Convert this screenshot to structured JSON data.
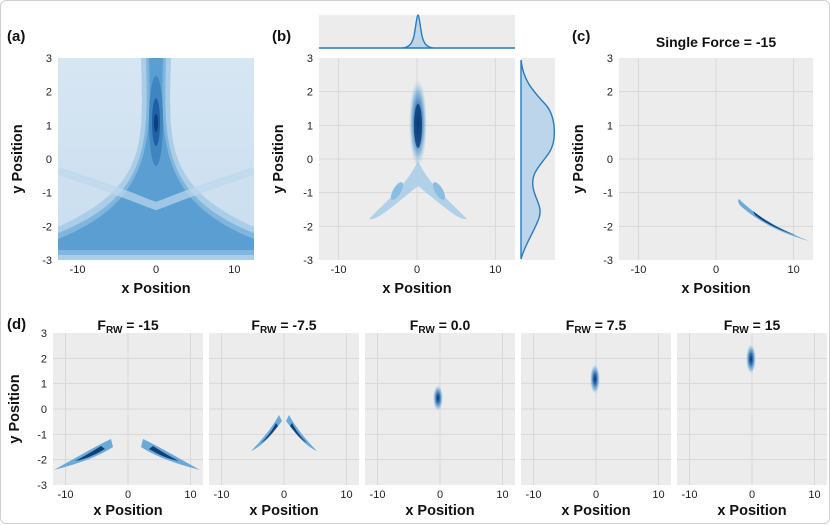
{
  "colors": {
    "accent": "#2b7bba",
    "dark": "#08306b",
    "panel_bg": "#ececec",
    "grid": "#d8d8d8"
  },
  "panel_labels": {
    "a": "(a)",
    "b": "(b)",
    "c": "(c)",
    "d": "(d)"
  },
  "axis_labels": {
    "x": "x Position",
    "y": "y Position"
  },
  "chart_data": [
    {
      "id": "a",
      "type": "heatmap",
      "xlabel": "x Position",
      "ylabel": "y Position",
      "xlim": [
        -12.5,
        12.5
      ],
      "ylim": [
        -3,
        3
      ],
      "xticks": [
        -10,
        0,
        10
      ],
      "yticks": [
        3,
        2,
        1,
        0,
        -1,
        -2,
        -3
      ],
      "description_values": {
        "peak": [
          0,
          1
        ],
        "branches": "two branches toward (-12,-2.4) and (12,-2.4)"
      }
    },
    {
      "id": "b",
      "type": "heatmap",
      "xlabel": "x Position",
      "ylabel": "y Position",
      "xlim": [
        -12.5,
        12.5
      ],
      "ylim": [
        -3,
        3
      ],
      "xticks": [
        -10,
        0,
        10
      ],
      "yticks": [
        3,
        2,
        1,
        0,
        -1,
        -2,
        -3
      ],
      "peak": [
        0,
        1
      ],
      "marginals": [
        "top: x density sharply peaked at 0",
        "right: y density with modes near 1 and -2"
      ]
    },
    {
      "id": "c",
      "type": "heatmap",
      "title": "Single Force = -15",
      "xlabel": "x Position",
      "ylabel": "y Position",
      "xlim": [
        -12.5,
        12.5
      ],
      "ylim": [
        -3,
        3
      ],
      "xticks": [
        -10,
        0,
        10
      ],
      "yticks": [
        3,
        2,
        1,
        0,
        -1,
        -2,
        -3
      ],
      "ridge": [
        [
          3.5,
          -1.3
        ],
        [
          6,
          -1.9
        ],
        [
          12,
          -2.45
        ]
      ]
    },
    {
      "id": "d1",
      "type": "heatmap",
      "title_main": "F",
      "title_sub": "RW",
      "title_value": " = -15",
      "xlabel": "x Position",
      "ylabel": "y Position",
      "xlim": [
        -12,
        12
      ],
      "ylim": [
        -3,
        3
      ],
      "xticks": [
        -10,
        0,
        10
      ],
      "yticks": [
        3,
        2,
        1,
        0,
        -1,
        -2,
        -3
      ],
      "ridges": [
        [
          [
            -2,
            -1.2
          ],
          [
            -6,
            -1.9
          ],
          [
            -12,
            -2.45
          ]
        ],
        [
          [
            2,
            -1.2
          ],
          [
            6,
            -1.9
          ],
          [
            12,
            -2.45
          ]
        ]
      ]
    },
    {
      "id": "d2",
      "type": "heatmap",
      "title_main": "F",
      "title_sub": "RW",
      "title_value": " = -7.5",
      "xlabel": "x Position",
      "xlim": [
        -12,
        12
      ],
      "ylim": [
        -3,
        3
      ],
      "xticks": [
        -10,
        0,
        10
      ],
      "ridges": [
        [
          [
            -0.8,
            -0.4
          ],
          [
            -2.5,
            -1.0
          ],
          [
            -5,
            -1.6
          ]
        ],
        [
          [
            0.8,
            -0.4
          ],
          [
            2.5,
            -1.0
          ],
          [
            5,
            -1.6
          ]
        ]
      ]
    },
    {
      "id": "d3",
      "type": "heatmap",
      "title_main": "F",
      "title_sub": "RW",
      "title_value": " = 0.0",
      "xlabel": "x Position",
      "xlim": [
        -12,
        12
      ],
      "ylim": [
        -3,
        3
      ],
      "xticks": [
        -10,
        0,
        10
      ],
      "peak": [
        0,
        0.4
      ]
    },
    {
      "id": "d4",
      "type": "heatmap",
      "title_main": "F",
      "title_sub": "RW",
      "title_value": " = 7.5",
      "xlabel": "x Position",
      "xlim": [
        -12,
        12
      ],
      "ylim": [
        -3,
        3
      ],
      "xticks": [
        -10,
        0,
        10
      ],
      "peak": [
        0,
        1.2
      ]
    },
    {
      "id": "d5",
      "type": "heatmap",
      "title_main": "F",
      "title_sub": "RW",
      "title_value": " = 15",
      "xlabel": "x Position",
      "xlim": [
        -12,
        12
      ],
      "ylim": [
        -3,
        3
      ],
      "xticks": [
        -10,
        0,
        10
      ],
      "peak": [
        0,
        2.0
      ]
    }
  ]
}
